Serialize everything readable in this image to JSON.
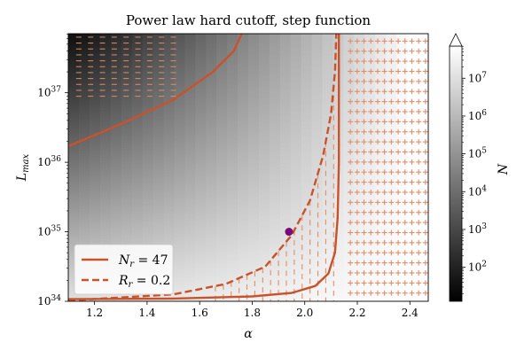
{
  "chart_data": {
    "type": "heatmap",
    "title": "Power law hard cutoff, step function",
    "xlabel": "α",
    "ylabel": "L",
    "ylabel_sub": "max",
    "x_range": [
      1.1,
      2.47
    ],
    "y_range_log10": [
      34,
      37.85
    ],
    "y_scale": "log",
    "x_ticks": [
      "1.2",
      "1.4",
      "1.6",
      "1.8",
      "2.0",
      "2.2",
      "2.4"
    ],
    "x_tick_values": [
      1.2,
      1.4,
      1.6,
      1.8,
      2.0,
      2.2,
      2.4
    ],
    "y_ticks": [
      {
        "base": "10",
        "exp": "34",
        "value": 34
      },
      {
        "base": "10",
        "exp": "35",
        "value": 35
      },
      {
        "base": "10",
        "exp": "36",
        "value": 36
      },
      {
        "base": "10",
        "exp": "37",
        "value": 37
      }
    ],
    "colorbar": {
      "label": "N",
      "colormap": "gray",
      "log10_range": [
        1.1,
        7.85
      ],
      "extend": "max",
      "ticks": [
        {
          "base": "10",
          "exp": "2",
          "value": 2
        },
        {
          "base": "10",
          "exp": "3",
          "value": 3
        },
        {
          "base": "10",
          "exp": "4",
          "value": 4
        },
        {
          "base": "10",
          "exp": "5",
          "value": 5
        },
        {
          "base": "10",
          "exp": "6",
          "value": 6
        },
        {
          "base": "10",
          "exp": "7",
          "value": 7
        }
      ]
    },
    "legend": {
      "placement": "lower-left",
      "entries": [
        {
          "label": "N",
          "sub": "r",
          "value": " = 47",
          "style": "solid"
        },
        {
          "label": "R",
          "sub": "r",
          "value": " = 0.2",
          "style": "dashed"
        }
      ]
    },
    "series": [
      {
        "name": "N_r = 47",
        "style": "solid",
        "segments": [
          [
            [
              1.1,
              36.23
            ],
            [
              1.3,
              36.55
            ],
            [
              1.5,
              36.9
            ],
            [
              1.65,
              37.3
            ],
            [
              1.73,
              37.6
            ],
            [
              1.76,
              37.85
            ]
          ],
          [
            [
              1.1,
              34.03
            ],
            [
              1.5,
              34.04
            ],
            [
              1.8,
              34.07
            ],
            [
              1.95,
              34.12
            ],
            [
              2.04,
              34.22
            ],
            [
              2.09,
              34.4
            ],
            [
              2.115,
              34.7
            ],
            [
              2.125,
              35.2
            ],
            [
              2.13,
              36.0
            ],
            [
              2.13,
              37.85
            ]
          ]
        ]
      },
      {
        "name": "R_r = 0.2",
        "style": "dashed",
        "segments": [
          [
            [
              1.1,
              34.01
            ],
            [
              1.5,
              34.1
            ],
            [
              1.7,
              34.25
            ],
            [
              1.85,
              34.5
            ],
            [
              1.95,
              34.95
            ],
            [
              2.02,
              35.45
            ],
            [
              2.07,
              36.1
            ],
            [
              2.1,
              36.7
            ],
            [
              2.115,
              37.3
            ],
            [
              2.12,
              37.85
            ]
          ]
        ]
      }
    ],
    "marker": {
      "x": 1.94,
      "y_log10": 35.0,
      "color": "#7a0a7a"
    },
    "colors": {
      "accent": "#c8532a",
      "hatch": "#e08e6a"
    }
  }
}
